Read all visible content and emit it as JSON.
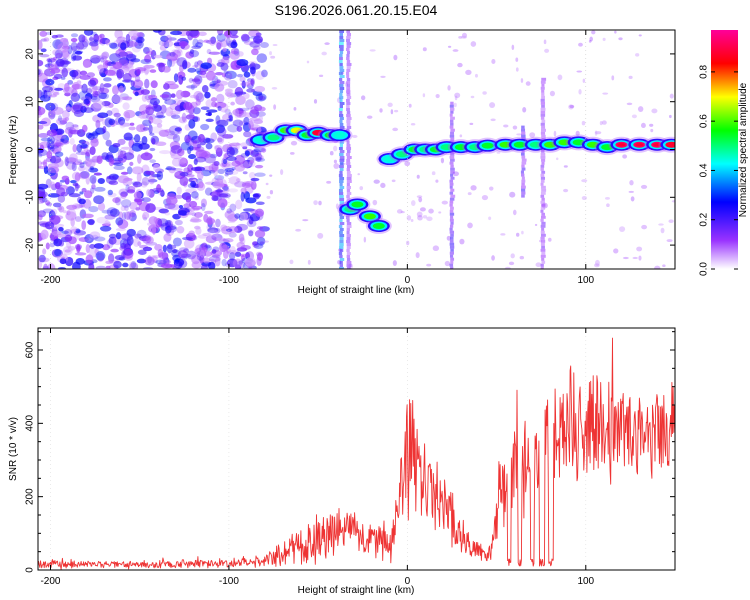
{
  "figure_title": "S196.2026.061.20.15.E04",
  "chart_data": [
    {
      "type": "heatmap",
      "title": "S196.2026.061.20.15.E04",
      "xlabel": "Height of straight line (km)",
      "ylabel": "Frequency (Hz)",
      "xlim": [
        -207,
        150
      ],
      "ylim": [
        -25,
        25
      ],
      "xticks": [
        -200,
        -100,
        0,
        100
      ],
      "yticks": [
        -20,
        -10,
        0,
        10,
        20
      ],
      "colorbar": {
        "label": "Normalized spectral amplitude",
        "range": [
          0,
          0.97
        ],
        "ticks": [
          0.0,
          0.2,
          0.4,
          0.6,
          0.8
        ],
        "colormap": [
          "#ffffff",
          "#9933ff",
          "#0000ff",
          "#00ffff",
          "#00ff00",
          "#ffff00",
          "#ff0000",
          "#ff0099"
        ]
      },
      "noise_region": {
        "x_range": [
          -207,
          -80
        ],
        "amplitude": [
          0.0,
          0.25
        ]
      },
      "vertical_streaks": [
        {
          "x": -37,
          "y_range": [
            -25,
            25
          ],
          "amplitude": 0.35
        },
        {
          "x": -33,
          "y_range": [
            -25,
            25
          ],
          "amplitude": 0.15
        },
        {
          "x": 25,
          "y_range": [
            -25,
            10
          ],
          "amplitude": 0.2
        },
        {
          "x": 65,
          "y_range": [
            -10,
            5
          ],
          "amplitude": 0.2
        },
        {
          "x": 76,
          "y_range": [
            -25,
            15
          ],
          "amplitude": 0.15
        }
      ],
      "ridge": [
        {
          "x": -82,
          "freq": 2.0,
          "amplitude": 0.45
        },
        {
          "x": -75,
          "freq": 2.5,
          "amplitude": 0.5
        },
        {
          "x": -68,
          "freq": 4.0,
          "amplitude": 0.6
        },
        {
          "x": -62,
          "freq": 4.0,
          "amplitude": 0.7
        },
        {
          "x": -56,
          "freq": 3.0,
          "amplitude": 0.55
        },
        {
          "x": -50,
          "freq": 3.5,
          "amplitude": 0.9
        },
        {
          "x": -43,
          "freq": 3.0,
          "amplitude": 0.55
        },
        {
          "x": -38,
          "freq": 3.0,
          "amplitude": 0.45
        },
        {
          "x": -32,
          "freq": -12.5,
          "amplitude": 0.5
        },
        {
          "x": -28,
          "freq": -11.5,
          "amplitude": 0.55
        },
        {
          "x": -21,
          "freq": -14.0,
          "amplitude": 0.6
        },
        {
          "x": -16,
          "freq": -16.0,
          "amplitude": 0.55
        },
        {
          "x": -10,
          "freq": -2.0,
          "amplitude": 0.45
        },
        {
          "x": -3,
          "freq": -1.0,
          "amplitude": 0.5
        },
        {
          "x": 4,
          "freq": 0.0,
          "amplitude": 0.55
        },
        {
          "x": 10,
          "freq": 0.0,
          "amplitude": 0.5
        },
        {
          "x": 16,
          "freq": 0.0,
          "amplitude": 0.55
        },
        {
          "x": 22,
          "freq": 0.5,
          "amplitude": 0.5
        },
        {
          "x": 30,
          "freq": 0.5,
          "amplitude": 0.55
        },
        {
          "x": 38,
          "freq": 0.5,
          "amplitude": 0.5
        },
        {
          "x": 45,
          "freq": 0.8,
          "amplitude": 0.55
        },
        {
          "x": 55,
          "freq": 1.0,
          "amplitude": 0.6
        },
        {
          "x": 63,
          "freq": 1.0,
          "amplitude": 0.55
        },
        {
          "x": 72,
          "freq": 1.0,
          "amplitude": 0.5
        },
        {
          "x": 80,
          "freq": 1.0,
          "amplitude": 0.6
        },
        {
          "x": 88,
          "freq": 1.5,
          "amplitude": 0.6
        },
        {
          "x": 96,
          "freq": 1.5,
          "amplitude": 0.55
        },
        {
          "x": 104,
          "freq": 1.0,
          "amplitude": 0.6
        },
        {
          "x": 112,
          "freq": 0.5,
          "amplitude": 0.55
        },
        {
          "x": 120,
          "freq": 1.0,
          "amplitude": 0.95
        },
        {
          "x": 130,
          "freq": 1.0,
          "amplitude": 0.95
        },
        {
          "x": 140,
          "freq": 1.0,
          "amplitude": 0.95
        },
        {
          "x": 148,
          "freq": 1.0,
          "amplitude": 0.9
        }
      ]
    },
    {
      "type": "line",
      "xlabel": "Height of straight line (km)",
      "ylabel": "SNR (10 * v/v)",
      "xlim": [
        -207,
        150
      ],
      "ylim": [
        0,
        660
      ],
      "xticks": [
        -200,
        -100,
        0,
        100
      ],
      "yticks": [
        0,
        200,
        400,
        600
      ],
      "series": [
        {
          "name": "SNR",
          "color": "#ee3333",
          "x": [
            -207,
            -150,
            -100,
            -80,
            -65,
            -55,
            -45,
            -35,
            -25,
            -15,
            -8,
            -3,
            0,
            5,
            10,
            15,
            20,
            25,
            30,
            35,
            40,
            45,
            48,
            52,
            56,
            60,
            65,
            70,
            75,
            80,
            85,
            90,
            95,
            100,
            110,
            120,
            130,
            140,
            150
          ],
          "base": [
            15,
            15,
            18,
            25,
            55,
            70,
            90,
            110,
            90,
            70,
            80,
            250,
            350,
            280,
            230,
            200,
            180,
            140,
            90,
            60,
            50,
            40,
            60,
            240,
            300,
            280,
            320,
            270,
            300,
            380,
            350,
            420,
            380,
            400,
            380,
            390,
            380,
            370,
            380
          ],
          "amp": [
            12,
            12,
            14,
            18,
            50,
            60,
            70,
            70,
            60,
            55,
            70,
            120,
            220,
            150,
            140,
            120,
            110,
            90,
            70,
            40,
            30,
            25,
            40,
            140,
            180,
            160,
            170,
            160,
            170,
            180,
            190,
            180,
            180,
            170,
            150,
            150,
            140,
            130,
            120
          ],
          "dropouts": [
            [
              56,
              58
            ],
            [
              62,
              64
            ],
            [
              69,
              71
            ],
            [
              74,
              77
            ],
            [
              79,
              82
            ]
          ],
          "noise_seed": 7
        }
      ]
    }
  ]
}
